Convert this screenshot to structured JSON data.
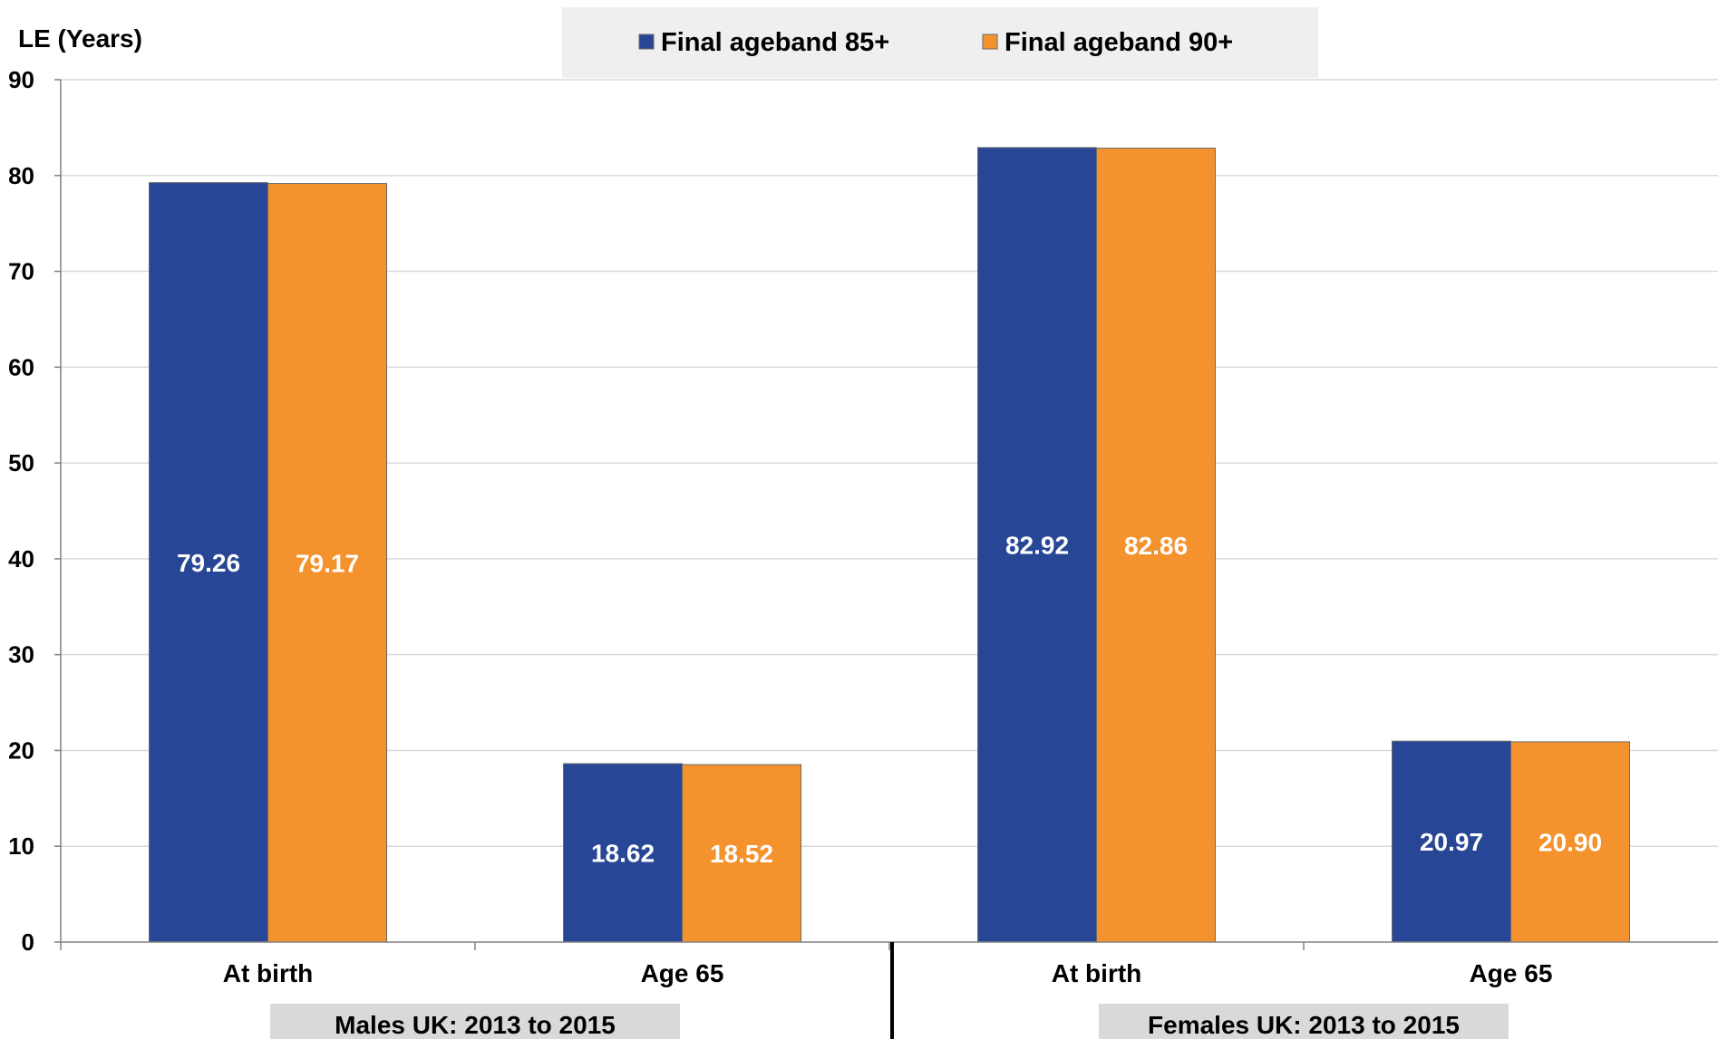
{
  "chart_data": {
    "type": "bar",
    "ylabel": "LE (Years)",
    "ylim": [
      0,
      90
    ],
    "yticks": [
      0,
      10,
      20,
      30,
      40,
      50,
      60,
      70,
      80,
      90
    ],
    "grid": true,
    "legend_position": "top-center",
    "groups": [
      {
        "label": "Males UK: 2013 to 2015",
        "categories": [
          "At birth",
          "Age 65"
        ]
      },
      {
        "label": "Females UK: 2013 to 2015",
        "categories": [
          "At birth",
          "Age 65"
        ]
      }
    ],
    "categories": [
      "At birth",
      "Age 65",
      "At birth",
      "Age 65"
    ],
    "series": [
      {
        "name": "Final ageband 85+",
        "color": "#284696",
        "values": [
          79.26,
          18.62,
          82.92,
          20.97
        ],
        "labels": [
          "79.26",
          "18.62",
          "82.92",
          "20.97"
        ]
      },
      {
        "name": "Final ageband 90+",
        "color": "#f4922e",
        "values": [
          79.17,
          18.52,
          82.86,
          20.9
        ],
        "labels": [
          "79.17",
          "18.52",
          "82.86",
          "20.90"
        ]
      }
    ]
  }
}
